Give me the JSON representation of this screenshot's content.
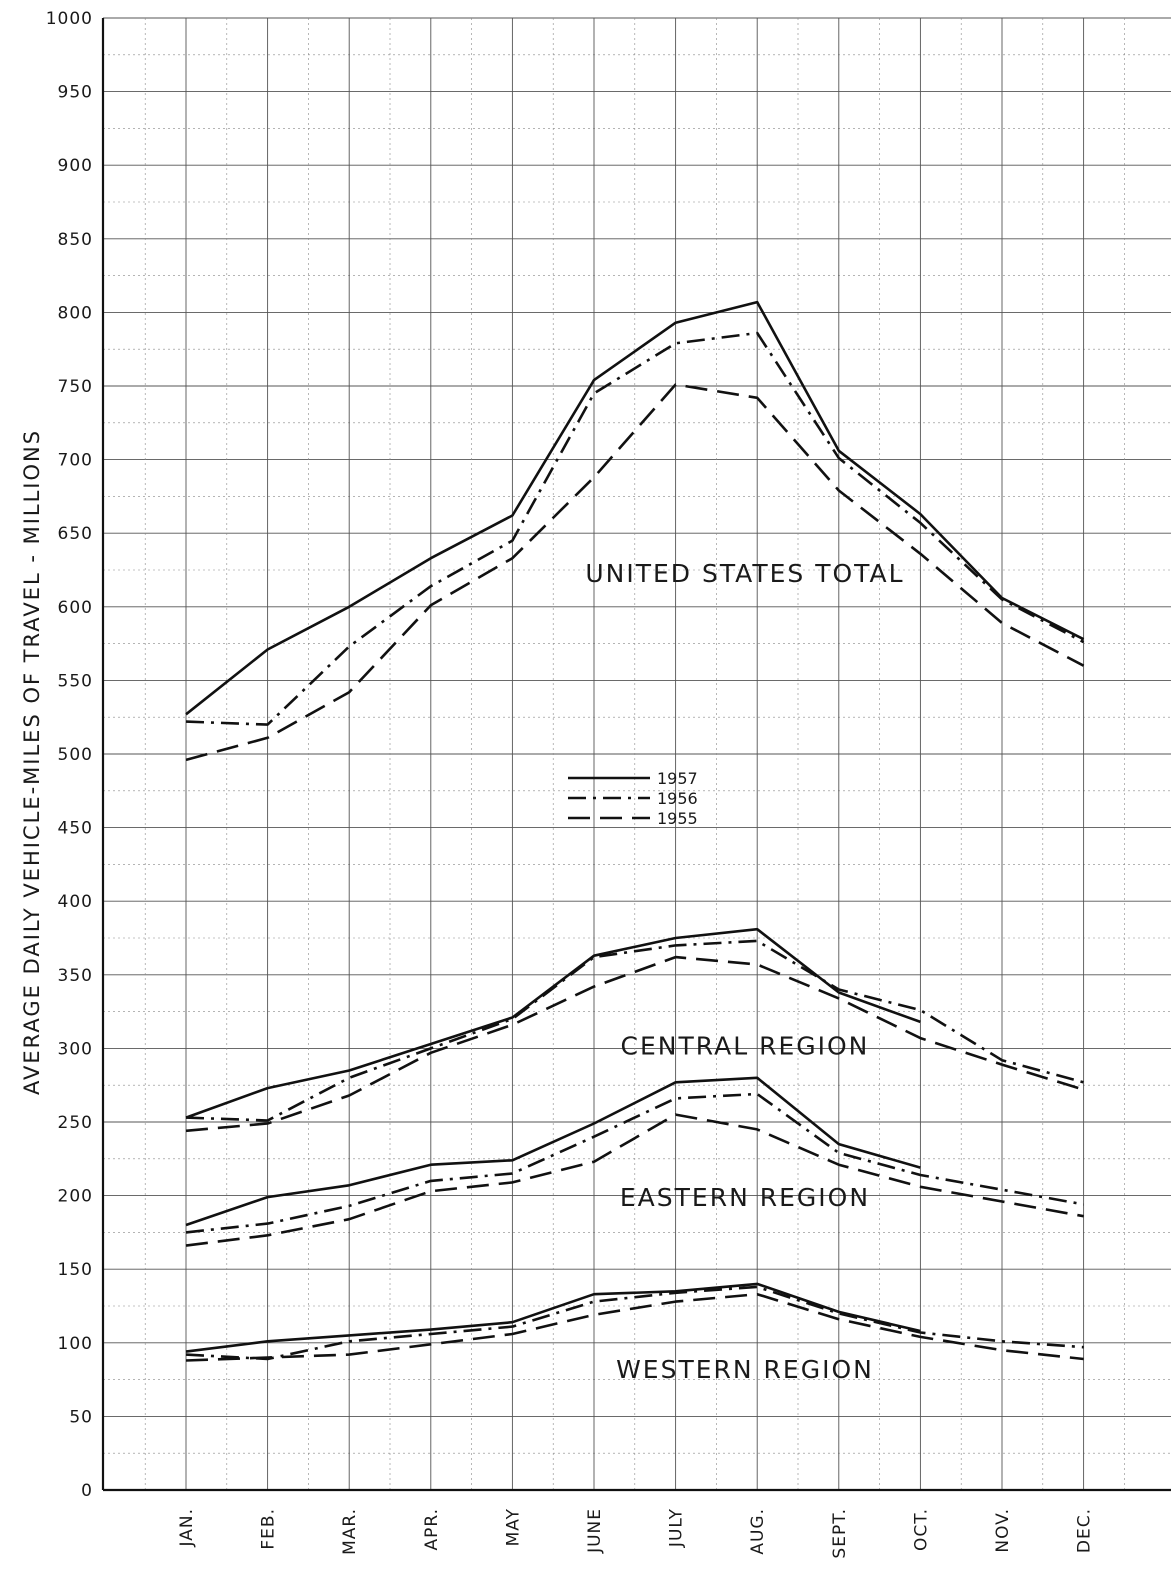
{
  "chart_data": {
    "type": "line",
    "ylabel": "AVERAGE DAILY VEHICLE-MILES OF TRAVEL - MILLIONS",
    "xlabel": "",
    "ylim": [
      0,
      1000
    ],
    "yticks": [
      "0",
      "50",
      "100",
      "150",
      "200",
      "250",
      "300",
      "350",
      "400",
      "450",
      "500",
      "550",
      "600",
      "650",
      "700",
      "750",
      "800",
      "850",
      "900",
      "950",
      "1000"
    ],
    "categories": [
      "JAN.",
      "FEB.",
      "MAR.",
      "APR.",
      "MAY",
      "JUNE",
      "JULY",
      "AUG.",
      "SEPT.",
      "OCT.",
      "NOV.",
      "DEC."
    ],
    "grid": true,
    "legend": {
      "position": "center",
      "entries": [
        {
          "name": "1957",
          "style": "solid"
        },
        {
          "name": "1956",
          "style": "dash-dot"
        },
        {
          "name": "1955",
          "style": "dashed"
        }
      ]
    },
    "groups": [
      {
        "label": "UNITED STATES TOTAL",
        "series": [
          {
            "name": "1957",
            "style": "solid",
            "values": [
              527,
              571,
              600,
              633,
              662,
              754,
              793,
              807,
              706,
              663,
              606,
              578
            ]
          },
          {
            "name": "1956",
            "style": "dash-dot",
            "values": [
              522,
              520,
              573,
              614,
              645,
              745,
              779,
              786,
              701,
              657,
              605,
              576
            ]
          },
          {
            "name": "1955",
            "style": "dashed",
            "values": [
              496,
              511,
              542,
              601,
              633,
              688,
              751,
              742,
              679,
              636,
              589,
              560
            ]
          }
        ]
      },
      {
        "label": "CENTRAL REGION",
        "series": [
          {
            "name": "1957",
            "style": "solid",
            "values": [
              253,
              273,
              285,
              303,
              321,
              363,
              375,
              381,
              338,
              318,
              null,
              null
            ]
          },
          {
            "name": "1956",
            "style": "dash-dot",
            "values": [
              253,
              251,
              280,
              300,
              320,
              362,
              370,
              373,
              340,
              326,
              292,
              277
            ]
          },
          {
            "name": "1955",
            "style": "dashed",
            "values": [
              244,
              249,
              268,
              297,
              316,
              342,
              362,
              357,
              334,
              307,
              289,
              272
            ]
          }
        ]
      },
      {
        "label": "EASTERN REGION",
        "series": [
          {
            "name": "1957",
            "style": "solid",
            "values": [
              180,
              199,
              207,
              221,
              224,
              249,
              277,
              280,
              235,
              219,
              null,
              null
            ]
          },
          {
            "name": "1956",
            "style": "dash-dot",
            "values": [
              175,
              181,
              193,
              210,
              215,
              240,
              266,
              269,
              229,
              214,
              204,
              194
            ]
          },
          {
            "name": "1955",
            "style": "dashed",
            "values": [
              166,
              173,
              184,
              203,
              209,
              223,
              255,
              245,
              221,
              206,
              196,
              186
            ]
          }
        ]
      },
      {
        "label": "WESTERN REGION",
        "series": [
          {
            "name": "1957",
            "style": "solid",
            "values": [
              94,
              101,
              105,
              109,
              114,
              133,
              135,
              140,
              121,
              108,
              null,
              null
            ]
          },
          {
            "name": "1956",
            "style": "dash-dot",
            "values": [
              92,
              89,
              101,
              106,
              111,
              128,
              134,
              138,
              120,
              107,
              101,
              97
            ]
          },
          {
            "name": "1955",
            "style": "dashed",
            "values": [
              88,
              90,
              92,
              99,
              106,
              119,
              128,
              133,
              116,
              104,
              95,
              89
            ]
          }
        ]
      }
    ]
  }
}
